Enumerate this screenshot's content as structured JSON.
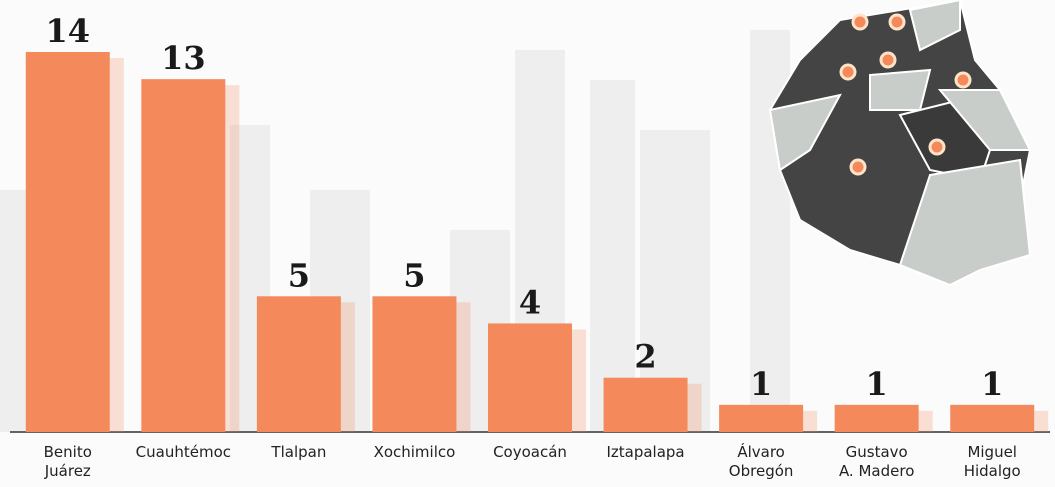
{
  "chart_data": {
    "type": "bar",
    "categories": [
      "Benito Juárez",
      "Cuauhtémoc",
      "Tlalpan",
      "Xochimilco",
      "Coyoacán",
      "Iztapalapa",
      "Álvaro Obregón",
      "Gustavo A. Madero",
      "Miguel Hidalgo"
    ],
    "values": [
      14,
      13,
      5,
      5,
      4,
      2,
      1,
      1,
      1
    ],
    "color": "#f48a5c",
    "ylim": [
      0,
      14
    ]
  }
}
